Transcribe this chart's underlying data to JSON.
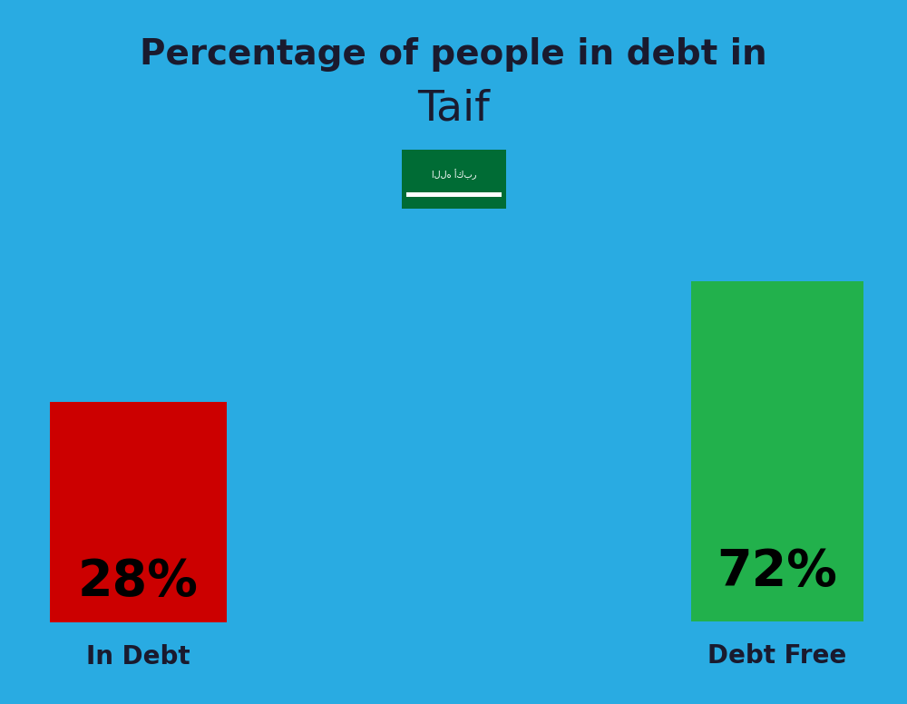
{
  "title_line1": "Percentage of people in debt in",
  "title_line2": "Taif",
  "background_color": "#29ABE2",
  "bar1_label": "In Debt",
  "bar1_color": "#CC0000",
  "bar1_text": "28%",
  "bar2_label": "Debt Free",
  "bar2_color": "#22B14C",
  "bar2_text": "72%",
  "title_color": "#1a1a2e",
  "label_color": "#1a1a2e",
  "title_fontsize": 28,
  "subtitle_fontsize": 34,
  "bar_text_fontsize": 40,
  "label_fontsize": 20,
  "flag_green": "#4a7c3f",
  "flag_bright_green": "#4caf50"
}
